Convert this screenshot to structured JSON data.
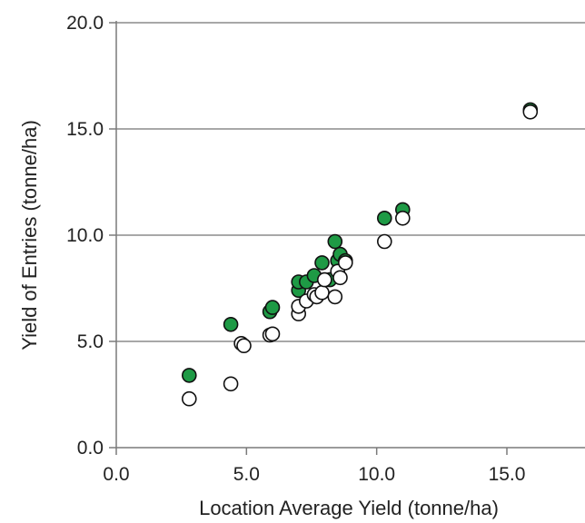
{
  "chart_data": {
    "type": "scatter",
    "title": "",
    "xlabel": "Location Average Yield (tonne/ha)",
    "ylabel": "Yield of Entries (tonne/ha)",
    "xlim": [
      0,
      18
    ],
    "ylim": [
      0,
      20
    ],
    "x_ticks": [
      "0.0",
      "5.0",
      "10.0",
      "15.0"
    ],
    "y_ticks": [
      "0.0",
      "5.0",
      "10.0",
      "15.0",
      "20.0"
    ],
    "grid": "horizontal",
    "legend": "none",
    "series": [
      {
        "marker": "filled-circle",
        "color": "#1e9a45",
        "points": [
          [
            2.8,
            3.4
          ],
          [
            4.4,
            5.8
          ],
          [
            5.9,
            6.4
          ],
          [
            6.0,
            6.6
          ],
          [
            7.0,
            7.4
          ],
          [
            7.0,
            7.8
          ],
          [
            7.3,
            7.8
          ],
          [
            7.6,
            8.1
          ],
          [
            7.9,
            8.7
          ],
          [
            8.2,
            7.9
          ],
          [
            8.4,
            9.7
          ],
          [
            8.5,
            8.8
          ],
          [
            8.6,
            9.1
          ],
          [
            8.8,
            8.8
          ],
          [
            10.3,
            10.8
          ],
          [
            11.0,
            11.2
          ],
          [
            15.9,
            15.9
          ]
        ]
      },
      {
        "marker": "open-circle",
        "color": "#ffffff",
        "points": [
          [
            2.8,
            2.3
          ],
          [
            4.4,
            3.0
          ],
          [
            4.8,
            4.9
          ],
          [
            4.9,
            4.8
          ],
          [
            5.9,
            5.3
          ],
          [
            6.0,
            5.35
          ],
          [
            7.0,
            6.3
          ],
          [
            7.0,
            6.65
          ],
          [
            7.3,
            6.9
          ],
          [
            7.6,
            7.2
          ],
          [
            7.7,
            7.1
          ],
          [
            7.9,
            7.3
          ],
          [
            8.0,
            7.9
          ],
          [
            8.4,
            7.1
          ],
          [
            8.5,
            8.3
          ],
          [
            8.6,
            8.0
          ],
          [
            8.8,
            8.7
          ],
          [
            10.3,
            9.7
          ],
          [
            11.0,
            10.8
          ],
          [
            15.9,
            15.8
          ]
        ]
      }
    ]
  }
}
